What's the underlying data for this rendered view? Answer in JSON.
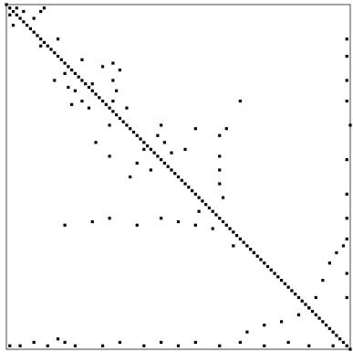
{
  "chart_data": {
    "type": "scatter",
    "color": "#000000",
    "xlim": [
      0,
      100
    ],
    "ylim": [
      100,
      0
    ],
    "x": [
      0,
      1,
      2,
      3,
      4,
      5,
      6,
      7,
      8,
      9,
      10,
      11,
      12,
      13,
      14,
      15,
      16,
      17,
      18,
      19,
      20,
      21,
      22,
      23,
      24,
      25,
      26,
      27,
      28,
      29,
      30,
      31,
      32,
      33,
      34,
      35,
      36,
      37,
      38,
      39,
      40,
      41,
      42,
      43,
      44,
      45,
      46,
      47,
      48,
      49,
      50,
      51,
      52,
      53,
      54,
      55,
      56,
      57,
      58,
      59,
      60,
      61,
      62,
      63,
      64,
      65,
      66,
      67,
      68,
      69,
      70,
      71,
      72,
      73,
      74,
      75,
      76,
      77,
      78,
      79,
      80,
      81,
      82,
      83,
      84,
      85,
      86,
      87,
      88,
      89,
      90,
      91,
      92,
      93,
      94,
      95,
      96,
      97,
      98,
      99,
      100,
      1,
      3,
      2,
      5,
      8,
      10,
      11,
      14,
      17,
      18,
      20,
      22,
      24,
      19,
      25,
      28,
      31,
      31,
      31,
      33,
      32,
      30,
      35,
      40,
      44,
      45,
      46,
      48,
      42,
      38,
      36,
      62,
      62,
      62,
      62,
      63,
      55,
      52,
      99,
      99,
      99,
      99,
      100,
      99,
      99,
      99,
      99,
      17,
      25,
      30,
      38,
      45,
      50,
      55,
      70,
      75,
      80,
      85,
      88,
      90,
      92,
      94,
      96,
      98,
      99,
      99,
      1,
      4,
      8,
      12,
      15,
      17,
      20,
      28,
      33,
      40,
      45,
      50,
      55,
      62,
      68,
      75,
      82,
      88,
      95,
      68,
      64,
      10,
      15,
      22,
      26,
      30,
      56,
      60,
      66,
      72
    ],
    "y": [
      0,
      1,
      2,
      3,
      4,
      5,
      6,
      7,
      8,
      9,
      10,
      11,
      12,
      13,
      14,
      15,
      16,
      17,
      18,
      19,
      20,
      21,
      22,
      23,
      24,
      25,
      26,
      27,
      28,
      29,
      30,
      31,
      32,
      33,
      34,
      35,
      36,
      37,
      38,
      39,
      40,
      41,
      42,
      43,
      44,
      45,
      46,
      47,
      48,
      49,
      50,
      51,
      52,
      53,
      54,
      55,
      56,
      57,
      58,
      59,
      60,
      61,
      62,
      63,
      64,
      65,
      66,
      67,
      68,
      69,
      70,
      71,
      72,
      73,
      74,
      75,
      76,
      77,
      78,
      79,
      80,
      81,
      82,
      83,
      84,
      85,
      86,
      87,
      88,
      89,
      90,
      91,
      92,
      93,
      94,
      95,
      96,
      97,
      98,
      99,
      100,
      3,
      1,
      6,
      2,
      4,
      2,
      1,
      22,
      20,
      24,
      25,
      28,
      30,
      29,
      23,
      18,
      17,
      22,
      28,
      19,
      25,
      35,
      30,
      42,
      38,
      35,
      40,
      43,
      48,
      46,
      50,
      38,
      44,
      48,
      52,
      56,
      36,
      42,
      10,
      15,
      22,
      28,
      35,
      45,
      55,
      62,
      68,
      64,
      63,
      62,
      64,
      62,
      63,
      64,
      95,
      93,
      92,
      90,
      88,
      85,
      80,
      75,
      72,
      70,
      78,
      85,
      99,
      99,
      98,
      99,
      97,
      98,
      99,
      99,
      98,
      99,
      98,
      99,
      98,
      99,
      98,
      99,
      98,
      99,
      99,
      28,
      36,
      12,
      10,
      16,
      40,
      44,
      60,
      65,
      70,
      72
    ]
  }
}
